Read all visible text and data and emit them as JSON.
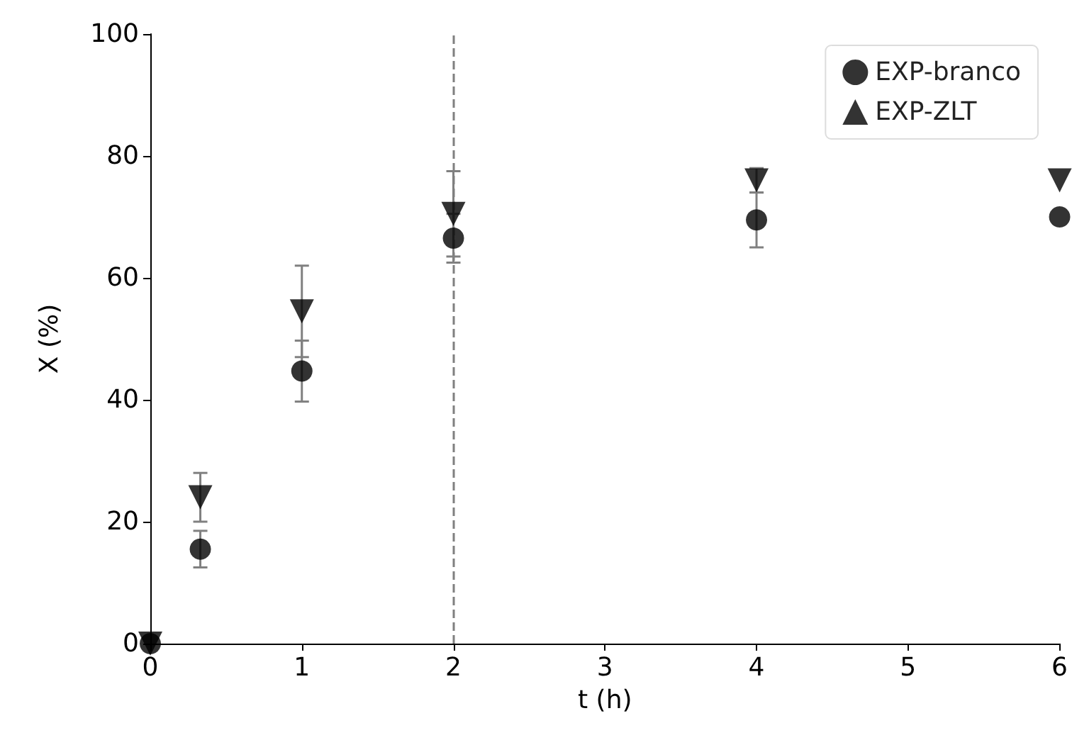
{
  "chart_data": {
    "type": "scatter",
    "xlabel": "t (h)",
    "ylabel": "X (%)",
    "x": [
      0,
      0.33,
      1,
      2,
      4,
      6
    ],
    "series": [
      {
        "name": "EXP-branco",
        "color": "#000000",
        "marker": "circle",
        "values": [
          0,
          15.5,
          44.7,
          66.5,
          69.5,
          70
        ],
        "errors": [
          null,
          3,
          5,
          4,
          4.5,
          null
        ]
      },
      {
        "name": "EXP-ZLT",
        "color": "#000000",
        "marker": "triangle",
        "values": [
          0,
          24,
          54.5,
          70.5,
          76,
          76
        ],
        "errors": [
          null,
          4,
          7.5,
          7,
          2,
          null
        ]
      }
    ],
    "xlim": [
      0,
      6
    ],
    "xticks": [
      0,
      1,
      2,
      3,
      4,
      5,
      6
    ],
    "ylim": [
      0,
      100
    ],
    "yticks": [
      0,
      20,
      40,
      60,
      80,
      100
    ],
    "ref_lines": [
      {
        "axis": "x",
        "value": 2,
        "color": "#808080",
        "line_style": "dashed"
      }
    ],
    "grid": false,
    "legend": "top right"
  }
}
